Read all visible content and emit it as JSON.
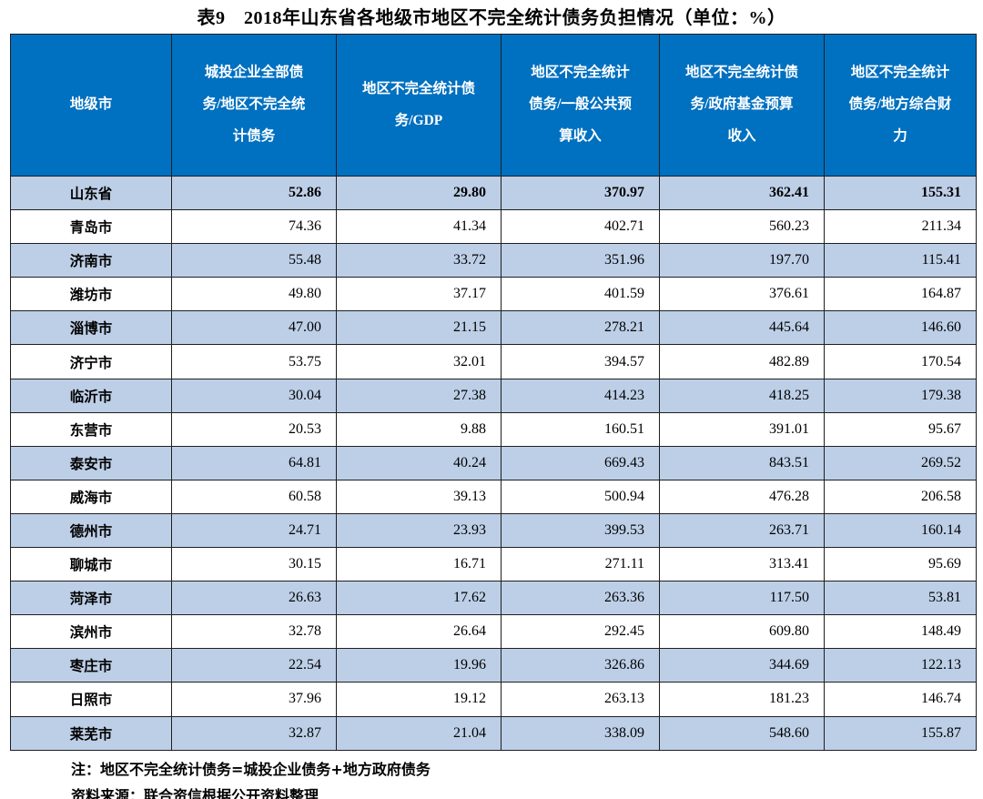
{
  "title": "表9　2018年山东省各地级市地区不完全统计债务负担情况（单位：%）",
  "colors": {
    "header_bg": "#0070C0",
    "stripe_bg": "#BDCFE7",
    "border": "#1f1f1f"
  },
  "table": {
    "columns": [
      "地级市",
      "城投企业全部债务/地区不完全统计债务",
      "地区不完全统计债务/GDP",
      "地区不完全统计债务/一般公共预算收入",
      "地区不完全统计债务/政府基金预算收入",
      "地区不完全统计债务/地方综合财力"
    ],
    "rows": [
      {
        "city": "山东省",
        "values": [
          "52.86",
          "29.80",
          "370.97",
          "362.41",
          "155.31"
        ],
        "bold": true
      },
      {
        "city": "青岛市",
        "values": [
          "74.36",
          "41.34",
          "402.71",
          "560.23",
          "211.34"
        ]
      },
      {
        "city": "济南市",
        "values": [
          "55.48",
          "33.72",
          "351.96",
          "197.70",
          "115.41"
        ]
      },
      {
        "city": "潍坊市",
        "values": [
          "49.80",
          "37.17",
          "401.59",
          "376.61",
          "164.87"
        ]
      },
      {
        "city": "淄博市",
        "values": [
          "47.00",
          "21.15",
          "278.21",
          "445.64",
          "146.60"
        ]
      },
      {
        "city": "济宁市",
        "values": [
          "53.75",
          "32.01",
          "394.57",
          "482.89",
          "170.54"
        ]
      },
      {
        "city": "临沂市",
        "values": [
          "30.04",
          "27.38",
          "414.23",
          "418.25",
          "179.38"
        ]
      },
      {
        "city": "东营市",
        "values": [
          "20.53",
          "9.88",
          "160.51",
          "391.01",
          "95.67"
        ]
      },
      {
        "city": "泰安市",
        "values": [
          "64.81",
          "40.24",
          "669.43",
          "843.51",
          "269.52"
        ]
      },
      {
        "city": "威海市",
        "values": [
          "60.58",
          "39.13",
          "500.94",
          "476.28",
          "206.58"
        ]
      },
      {
        "city": "德州市",
        "values": [
          "24.71",
          "23.93",
          "399.53",
          "263.71",
          "160.14"
        ]
      },
      {
        "city": "聊城市",
        "values": [
          "30.15",
          "16.71",
          "271.11",
          "313.41",
          "95.69"
        ]
      },
      {
        "city": "菏泽市",
        "values": [
          "26.63",
          "17.62",
          "263.36",
          "117.50",
          "53.81"
        ]
      },
      {
        "city": "滨州市",
        "values": [
          "32.78",
          "26.64",
          "292.45",
          "609.80",
          "148.49"
        ]
      },
      {
        "city": "枣庄市",
        "values": [
          "22.54",
          "19.96",
          "326.86",
          "344.69",
          "122.13"
        ]
      },
      {
        "city": "日照市",
        "values": [
          "37.96",
          "19.12",
          "263.13",
          "181.23",
          "146.74"
        ]
      },
      {
        "city": "莱芜市",
        "values": [
          "32.87",
          "21.04",
          "338.09",
          "548.60",
          "155.87"
        ]
      }
    ]
  },
  "notes": {
    "note": "注：地区不完全统计债务=城投企业债务+地方政府债务",
    "source": "资料来源：联合资信根据公开资料整理"
  }
}
